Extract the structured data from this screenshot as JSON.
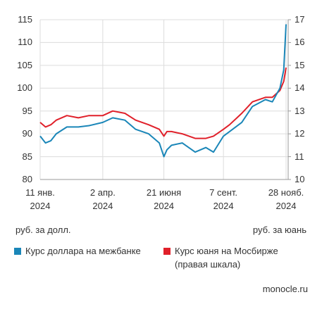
{
  "chart_data": {
    "type": "line",
    "x": [
      "2024-01-11",
      "2024-01-18",
      "2024-01-25",
      "2024-02-01",
      "2024-02-15",
      "2024-03-01",
      "2024-03-15",
      "2024-04-02",
      "2024-04-15",
      "2024-05-01",
      "2024-05-15",
      "2024-06-01",
      "2024-06-15",
      "2024-06-21",
      "2024-06-25",
      "2024-07-01",
      "2024-07-15",
      "2024-08-01",
      "2024-08-15",
      "2024-08-25",
      "2024-09-07",
      "2024-09-15",
      "2024-10-01",
      "2024-10-15",
      "2024-11-01",
      "2024-11-10",
      "2024-11-20",
      "2024-11-25",
      "2024-11-28"
    ],
    "series": [
      {
        "name": "Курс доллара на межбанке",
        "color": "#1a86b8",
        "values": [
          89.5,
          88,
          88.5,
          90,
          91.5,
          91.5,
          91.8,
          92.5,
          93.5,
          93,
          91,
          90,
          88,
          85,
          86.5,
          87.5,
          88,
          86,
          87,
          86,
          89.5,
          90.5,
          92.5,
          96,
          97.5,
          97,
          100,
          104,
          114
        ]
      },
      {
        "name": "Курс юаня на Мосбирже\n(правая шкала)",
        "color": "#e0202a",
        "axis": "y2",
        "values": [
          12.5,
          12.3,
          12.4,
          12.6,
          12.8,
          12.7,
          12.8,
          12.8,
          13.0,
          12.9,
          12.6,
          12.4,
          12.2,
          11.9,
          12.1,
          12.1,
          12.0,
          11.8,
          11.8,
          11.9,
          12.2,
          12.4,
          12.9,
          13.4,
          13.6,
          13.6,
          13.9,
          14.3,
          14.9
        ]
      }
    ],
    "xlim": [
      "2024-01-11",
      "2024-11-28"
    ],
    "xticks": [
      {
        "value": "2024-01-11",
        "label": "11 янв.\n2024"
      },
      {
        "value": "2024-04-02",
        "label": "2 апр.\n2024"
      },
      {
        "value": "2024-06-21",
        "label": "21 июня\n2024"
      },
      {
        "value": "2024-09-07",
        "label": "7 сент.\n2024"
      },
      {
        "value": "2024-11-28",
        "label": "28 нояб.\n2024"
      }
    ],
    "ylim": [
      80,
      115
    ],
    "yticks": [
      80,
      85,
      90,
      95,
      100,
      105,
      110,
      115
    ],
    "y2lim": [
      10,
      17
    ],
    "y2ticks": [
      10,
      11,
      12,
      13,
      14,
      15,
      16,
      17
    ],
    "ylabel": "руб. за долл.",
    "y2label": "руб. за юань",
    "grid": true,
    "source": "monocle.ru"
  }
}
